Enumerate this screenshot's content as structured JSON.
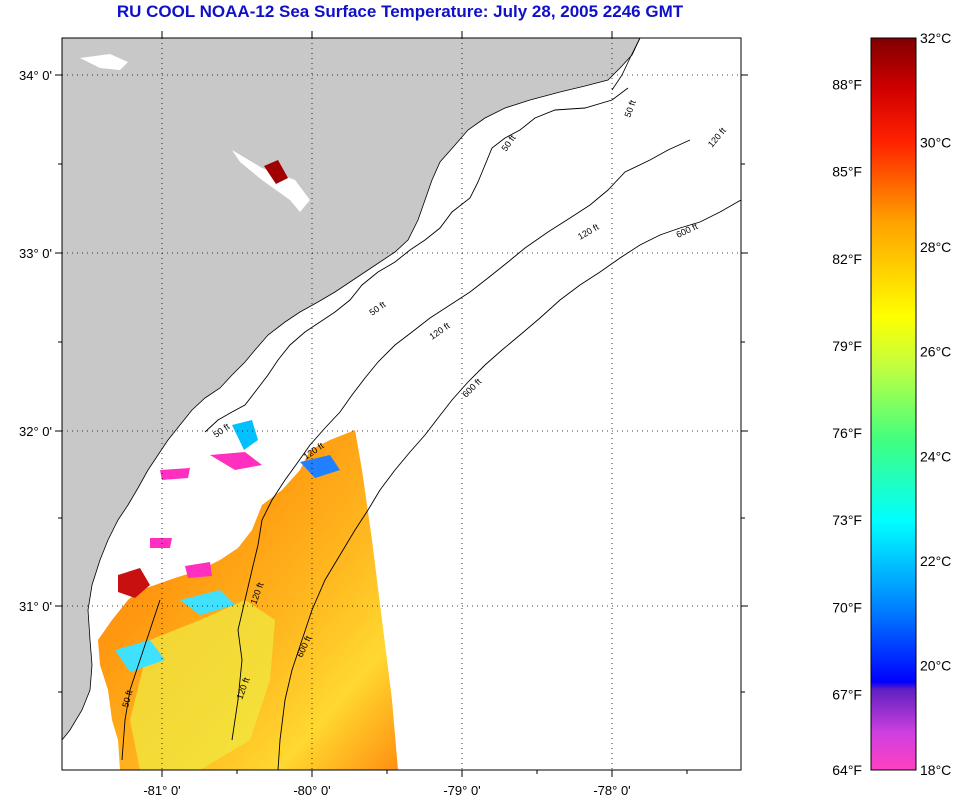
{
  "title": "RU COOL  NOAA-12  Sea Surface Temperature:  July 28, 2005 2246 GMT",
  "latitudes": [
    {
      "label": "34° 0'",
      "lat": 34
    },
    {
      "label": "33° 0'",
      "lat": 33
    },
    {
      "label": "32° 0'",
      "lat": 32
    },
    {
      "label": "31° 0'",
      "lat": 31
    }
  ],
  "longitudes": [
    {
      "label": "-81° 0'",
      "lon": -81
    },
    {
      "label": "-80° 0'",
      "lon": -80
    },
    {
      "label": "-79° 0'",
      "lon": -79
    },
    {
      "label": "-78° 0'",
      "lon": -78
    }
  ],
  "contour_labels": [
    "50 ft",
    "120 ft",
    "600 ft"
  ],
  "colorbar": {
    "fahrenheit": [
      "64°F",
      "67°F",
      "70°F",
      "73°F",
      "76°F",
      "79°F",
      "82°F",
      "85°F",
      "88°F"
    ],
    "celsius": [
      "18°C",
      "20°C",
      "22°C",
      "24°C",
      "26°C",
      "28°C",
      "30°C",
      "32°C"
    ],
    "range_c": [
      18,
      32
    ]
  },
  "colors": {
    "land": "#c8c8c8",
    "title": "#1010c8",
    "nodata": "#ffffff"
  }
}
